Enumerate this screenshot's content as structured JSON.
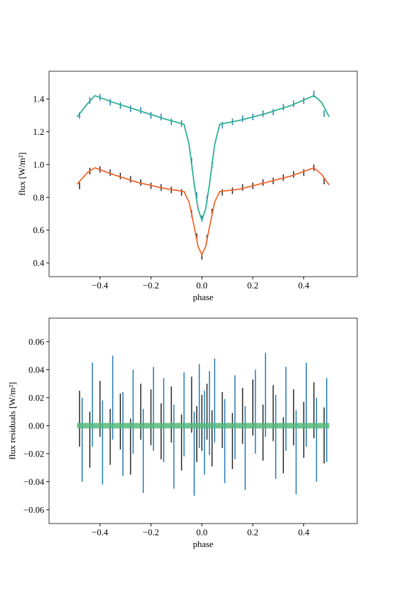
{
  "chart_data": [
    {
      "type": "errorbar",
      "xlabel": "phase",
      "ylabel": "flux [W/m²]",
      "xlim": [
        -0.6,
        0.61
      ],
      "ylim": [
        0.316,
        1.569
      ],
      "xticks": [
        {
          "value": -0.4,
          "label": "−0.4"
        },
        {
          "value": -0.2,
          "label": "−0.2"
        },
        {
          "value": 0,
          "label": "0.0"
        },
        0.2,
        0.4
      ],
      "yticks": [
        0.4,
        0.6,
        0.8,
        {
          "value": 1,
          "label": "1.0"
        },
        1.2,
        1.4
      ],
      "series": [
        {
          "color": "#1f77b4",
          "error": 0.02,
          "x": [
            -0.48,
            -0.44,
            -0.4,
            -0.36,
            -0.32,
            -0.28,
            -0.24,
            -0.2,
            -0.16,
            -0.12,
            -0.08,
            -0.04,
            -0.02,
            0,
            0.02,
            0.04,
            0.08,
            0.12,
            0.16,
            0.2,
            0.24,
            0.28,
            0.32,
            0.36,
            0.4,
            0.44,
            0.48
          ],
          "values": [
            1.3,
            1.39,
            1.41,
            1.38,
            1.36,
            1.34,
            1.33,
            1.3,
            1.29,
            1.26,
            1.25,
            1.02,
            0.81,
            0.67,
            0.79,
            1.0,
            1.24,
            1.26,
            1.28,
            1.29,
            1.31,
            1.32,
            1.35,
            1.37,
            1.39,
            1.43,
            1.31
          ]
        },
        {
          "color": "#222222",
          "error": 0.02,
          "x": [
            -0.48,
            -0.44,
            -0.4,
            -0.36,
            -0.32,
            -0.28,
            -0.24,
            -0.2,
            -0.16,
            -0.12,
            -0.08,
            -0.04,
            -0.02,
            0,
            0.02,
            0.04,
            0.08,
            0.12,
            0.16,
            0.2,
            0.24,
            0.28,
            0.32,
            0.36,
            0.4,
            0.44,
            0.48
          ],
          "values": [
            0.87,
            0.96,
            0.97,
            0.95,
            0.93,
            0.91,
            0.89,
            0.87,
            0.86,
            0.845,
            0.83,
            0.7,
            0.56,
            0.44,
            0.55,
            0.71,
            0.83,
            0.84,
            0.86,
            0.87,
            0.89,
            0.9,
            0.92,
            0.94,
            0.95,
            0.98,
            0.9
          ]
        },
        {
          "color": "#2ab08f",
          "x": [
            -0.49,
            -0.45,
            -0.42,
            -0.35,
            -0.25,
            -0.15,
            -0.07,
            -0.05,
            -0.03,
            -0.015,
            0,
            0.015,
            0.03,
            0.05,
            0.07,
            0.15,
            0.25,
            0.35,
            0.44,
            0.47,
            0.5
          ],
          "values": [
            1.29,
            1.37,
            1.42,
            1.38,
            1.33,
            1.28,
            1.245,
            1.12,
            0.88,
            0.73,
            0.66,
            0.73,
            0.88,
            1.12,
            1.245,
            1.27,
            1.31,
            1.36,
            1.42,
            1.38,
            1.29
          ]
        },
        {
          "color": "#f4642a",
          "x": [
            -0.49,
            -0.45,
            -0.42,
            -0.35,
            -0.25,
            -0.15,
            -0.07,
            -0.05,
            -0.03,
            -0.015,
            0,
            0.015,
            0.03,
            0.05,
            0.07,
            0.15,
            0.25,
            0.35,
            0.44,
            0.47,
            0.5
          ],
          "values": [
            0.88,
            0.95,
            0.98,
            0.94,
            0.89,
            0.855,
            0.835,
            0.77,
            0.62,
            0.5,
            0.45,
            0.5,
            0.62,
            0.77,
            0.835,
            0.85,
            0.89,
            0.93,
            0.98,
            0.94,
            0.875
          ]
        }
      ]
    },
    {
      "type": "errorbar",
      "xlabel": "phase",
      "ylabel": "flux residuals [W/m²]",
      "xlim": [
        -0.6,
        0.61
      ],
      "ylim": [
        -0.0699,
        0.0768
      ],
      "xticks": [
        {
          "value": -0.4,
          "label": "−0.4"
        },
        {
          "value": -0.2,
          "label": "−0.2"
        },
        {
          "value": 0,
          "label": "0.0"
        },
        0.2,
        0.4
      ],
      "yticks": [
        {
          "value": -0.06,
          "label": "−0.06"
        },
        {
          "value": -0.04,
          "label": "−0.04"
        },
        {
          "value": -0.02,
          "label": "−0.02"
        },
        {
          "value": 0,
          "label": "0.00"
        },
        0.02,
        0.04,
        0.06
      ],
      "series": [
        {
          "color": "#222222",
          "error": 0.02,
          "x": [
            -0.48,
            -0.44,
            -0.4,
            -0.36,
            -0.32,
            -0.28,
            -0.24,
            -0.2,
            -0.16,
            -0.12,
            -0.08,
            -0.04,
            -0.02,
            0,
            0.02,
            0.04,
            0.08,
            0.12,
            0.16,
            0.2,
            0.24,
            0.28,
            0.32,
            0.36,
            0.4,
            0.44,
            0.48
          ],
          "values": [
            0.005,
            -0.01,
            0.012,
            -0.008,
            0.003,
            -0.015,
            0.01,
            0.006,
            -0.004,
            0.008,
            -0.012,
            0.015,
            -0.006,
            0.002,
            0.01,
            -0.009,
            0.004,
            -0.011,
            0.007,
            0.013,
            -0.005,
            0.009,
            -0.014,
            0.006,
            -0.003,
            0.011,
            -0.007
          ]
        },
        {
          "color": "#1f77b4",
          "error": 0.03,
          "x": [
            -0.47,
            -0.43,
            -0.39,
            -0.35,
            -0.31,
            -0.27,
            -0.23,
            -0.19,
            -0.15,
            -0.11,
            -0.07,
            -0.03,
            -0.01,
            0.01,
            0.03,
            0.05,
            0.09,
            0.13,
            0.17,
            0.21,
            0.25,
            0.29,
            0.33,
            0.37,
            0.41,
            0.45,
            0.49
          ],
          "values": [
            -0.01,
            0.015,
            -0.012,
            0.02,
            -0.006,
            0.01,
            -0.018,
            0.012,
            0.004,
            -0.015,
            0.008,
            -0.02,
            0.014,
            -0.005,
            0.009,
            0.018,
            -0.011,
            0.006,
            -0.016,
            0.01,
            0.022,
            -0.008,
            0.012,
            -0.019,
            0.015,
            -0.01,
            0.004
          ]
        },
        {
          "color": "#55b87a",
          "x": [
            -0.49,
            0.5
          ],
          "values": [
            0,
            0
          ]
        }
      ]
    }
  ]
}
